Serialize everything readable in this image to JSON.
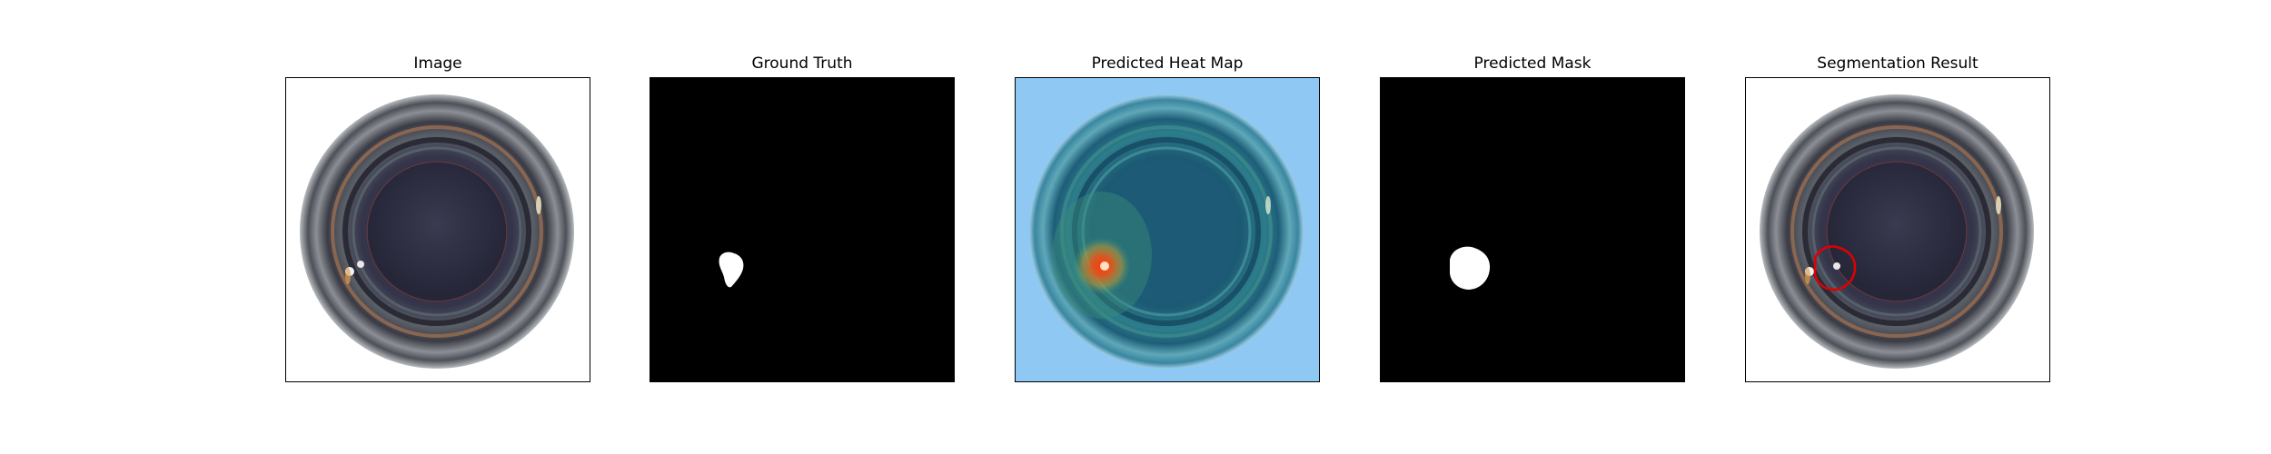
{
  "panels": [
    {
      "title": "Image",
      "icon": "bottle-mouth-photo"
    },
    {
      "title": "Ground Truth",
      "icon": "defect-mask"
    },
    {
      "title": "Predicted Heat Map",
      "icon": "heat-map"
    },
    {
      "title": "Predicted Mask",
      "icon": "defect-mask"
    },
    {
      "title": "Segmentation Result",
      "icon": "segmentation-overlay"
    }
  ],
  "colors": {
    "frame_border": "#000000",
    "mask_background": "#000000",
    "mask_foreground": "#ffffff",
    "heat_background": "#8fc8f2",
    "heat_hotspot": "#e8561a",
    "segmentation_contour": "#e00000"
  }
}
